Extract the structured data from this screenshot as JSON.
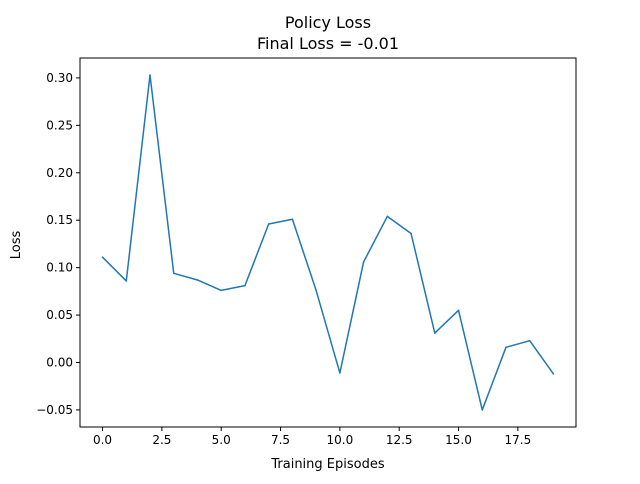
{
  "chart_data": {
    "type": "line",
    "title": "Policy Loss",
    "subtitle": "Final Loss = -0.01",
    "xlabel": "Training Episodes",
    "ylabel": "Loss",
    "xlim": [
      -0.95,
      19.95
    ],
    "ylim": [
      -0.068,
      0.321
    ],
    "grid": false,
    "legend": "none",
    "x_ticks": [
      0,
      2.5,
      5,
      7.5,
      10,
      12.5,
      15,
      17.5
    ],
    "x_tick_labels": [
      "0.0",
      "2.5",
      "5.0",
      "7.5",
      "10.0",
      "12.5",
      "15.0",
      "17.5"
    ],
    "y_ticks": [
      -0.05,
      0.0,
      0.05,
      0.1,
      0.15,
      0.2,
      0.25,
      0.3
    ],
    "y_tick_labels": [
      "−0.05",
      "0.00",
      "0.05",
      "0.10",
      "0.15",
      "0.20",
      "0.25",
      "0.30"
    ],
    "series": [
      {
        "color": "#1f77b4",
        "x": [
          0,
          1,
          2,
          3,
          4,
          5,
          6,
          7,
          8,
          9,
          10,
          11,
          12,
          13,
          14,
          15,
          16,
          17,
          18,
          19
        ],
        "y": [
          0.111,
          0.086,
          0.303,
          0.094,
          0.087,
          0.076,
          0.081,
          0.146,
          0.151,
          0.076,
          -0.011,
          0.106,
          0.154,
          0.136,
          0.031,
          0.055,
          -0.05,
          0.016,
          0.023,
          -0.012
        ]
      }
    ]
  }
}
